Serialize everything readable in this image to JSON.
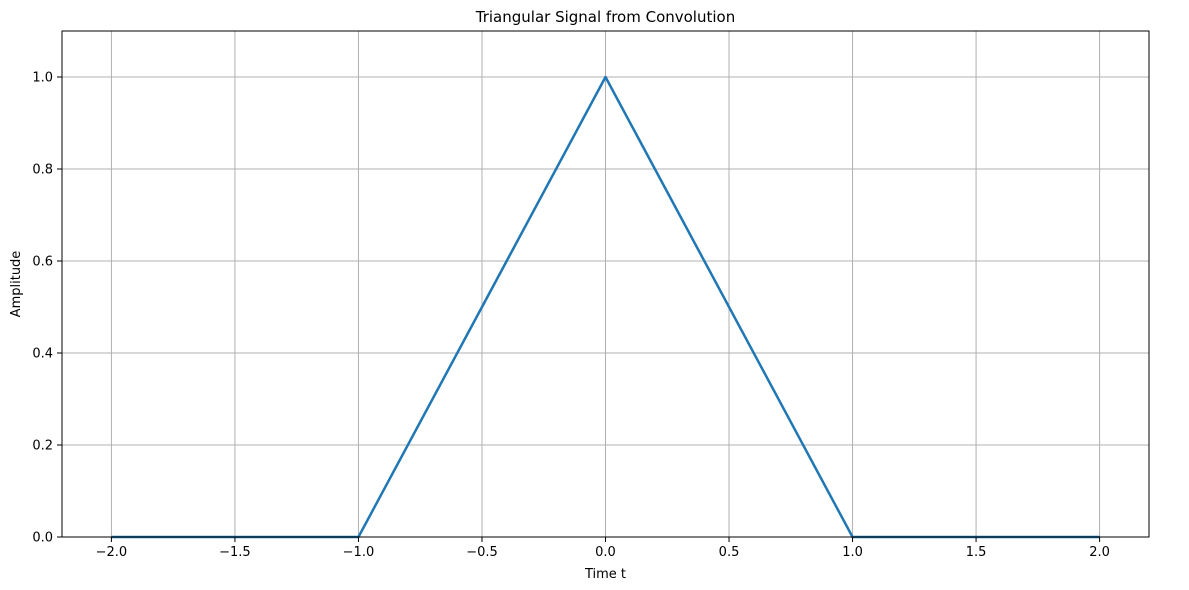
{
  "chart_data": {
    "type": "line",
    "title": "Triangular Signal from Convolution",
    "xlabel": "Time t",
    "ylabel": "Amplitude",
    "xlim": [
      -2.2,
      2.2
    ],
    "ylim": [
      0,
      1.1
    ],
    "x_ticks": [
      -2.0,
      -1.5,
      -1.0,
      -0.5,
      0.0,
      0.5,
      1.0,
      1.5,
      2.0
    ],
    "x_tick_labels": [
      "−2.0",
      "−1.5",
      "−1.0",
      "−0.5",
      "0.0",
      "0.5",
      "1.0",
      "1.5",
      "2.0"
    ],
    "y_ticks": [
      0.0,
      0.2,
      0.4,
      0.6,
      0.8,
      1.0
    ],
    "y_tick_labels": [
      "0.0",
      "0.2",
      "0.4",
      "0.6",
      "0.8",
      "1.0"
    ],
    "grid": true,
    "series": [
      {
        "color": "#1f77b4",
        "x": [
          -2.0,
          -1.0,
          0.0,
          1.0,
          2.0
        ],
        "y": [
          0.0,
          0.0,
          1.0,
          0.0,
          0.0
        ]
      }
    ]
  },
  "colors": {
    "grid": "#b0b0b0",
    "axis": "#000000",
    "line": "#1f77b4"
  }
}
